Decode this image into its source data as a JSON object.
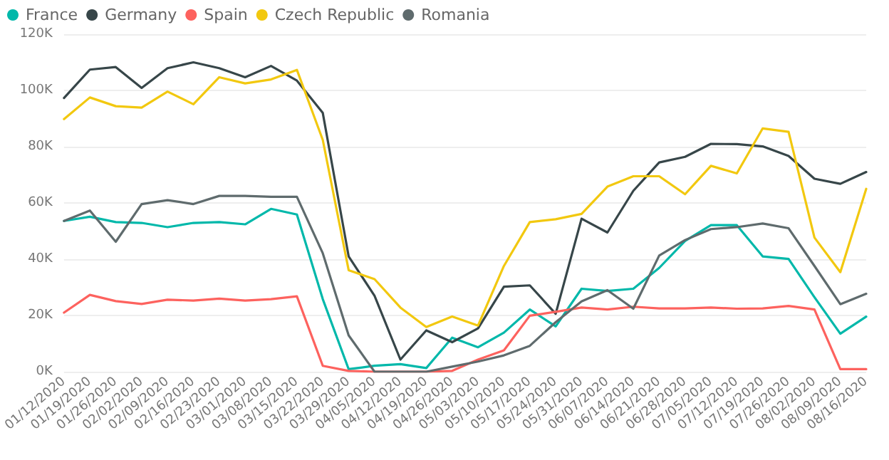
{
  "chart_data": {
    "type": "line",
    "categories": [
      "01/12/2020",
      "01/19/2020",
      "01/26/2020",
      "02/02/2020",
      "02/09/2020",
      "02/16/2020",
      "02/23/2020",
      "03/01/2020",
      "03/08/2020",
      "03/15/2020",
      "03/22/2020",
      "03/29/2020",
      "04/05/2020",
      "04/12/2020",
      "04/19/2020",
      "04/26/2020",
      "05/03/2020",
      "05/10/2020",
      "05/17/2020",
      "05/24/2020",
      "05/31/2020",
      "06/07/2020",
      "06/14/2020",
      "06/21/2020",
      "06/28/2020",
      "07/05/2020",
      "07/12/2020",
      "07/19/2020",
      "07/26/2020",
      "08/02/2020",
      "08/09/2020",
      "08/16/2020"
    ],
    "series": [
      {
        "name": "France",
        "color": "#01b8aa",
        "values": [
          53.6,
          55.1,
          53.2,
          52.9,
          51.4,
          52.9,
          53.2,
          52.4,
          57.9,
          55.9,
          25.8,
          0.9,
          2.1,
          2.7,
          1.3,
          12.1,
          8.7,
          13.9,
          22.1,
          16.1,
          29.5,
          28.7,
          29.5,
          36.9,
          46.5,
          52.1,
          52.1,
          41,
          40.1,
          26.5,
          13.5,
          19.6
        ]
      },
      {
        "name": "Germany",
        "color": "#374649",
        "values": [
          97.3,
          107.4,
          108.3,
          100.9,
          107.9,
          110,
          107.9,
          104.7,
          108.7,
          103.5,
          92,
          41,
          27,
          4.3,
          14.7,
          10.5,
          15.4,
          30.2,
          30.7,
          20.6,
          54.4,
          49.5,
          64.3,
          74.4,
          76.4,
          81,
          80.9,
          80.1,
          76.7,
          68.6,
          66.8,
          71
        ]
      },
      {
        "name": "Spain",
        "color": "#fd625e",
        "values": [
          21,
          27.3,
          25.1,
          24.1,
          25.6,
          25.3,
          26,
          25.3,
          25.8,
          26.8,
          2.1,
          0.3,
          0,
          0,
          0,
          0.3,
          4.3,
          7.6,
          19.9,
          21.3,
          22.8,
          22.1,
          23.1,
          22.5,
          22.5,
          22.8,
          22.4,
          22.5,
          23.4,
          22.1,
          0.9,
          0.9
        ]
      },
      {
        "name": "Czech Republic",
        "color": "#f2c80f",
        "values": [
          89.8,
          97.5,
          94.4,
          93.9,
          99.6,
          95.1,
          104.7,
          102.5,
          103.9,
          107.3,
          82.4,
          36.1,
          32.9,
          22.8,
          15.9,
          19.6,
          16.4,
          37.6,
          53.2,
          54.2,
          56.1,
          65.8,
          69.5,
          69.5,
          63.1,
          73.2,
          70.5,
          86.5,
          85.3,
          47.7,
          35.4,
          65
        ]
      },
      {
        "name": "Romania",
        "color": "#5f6b6d",
        "values": [
          53.6,
          57.3,
          46.2,
          59.6,
          61,
          59.6,
          62.5,
          62.5,
          62.2,
          62.2,
          42.1,
          12.9,
          0,
          0,
          0,
          1.8,
          3.6,
          5.8,
          9.2,
          17.6,
          25,
          29,
          22.4,
          41.3,
          46.8,
          50.7,
          51.4,
          52.7,
          51,
          37.6,
          24,
          27.7
        ]
      }
    ],
    "ylim": [
      0,
      120
    ],
    "yticks": [
      {
        "value": 0,
        "label": "0K"
      },
      {
        "value": 20,
        "label": "20K"
      },
      {
        "value": 40,
        "label": "40K"
      },
      {
        "value": 60,
        "label": "60K"
      },
      {
        "value": 80,
        "label": "80K"
      },
      {
        "value": 100,
        "label": "100K"
      },
      {
        "value": 120,
        "label": "120K"
      }
    ],
    "grid": "y",
    "legend": "top left",
    "marker": "none",
    "line_style": "solid"
  }
}
